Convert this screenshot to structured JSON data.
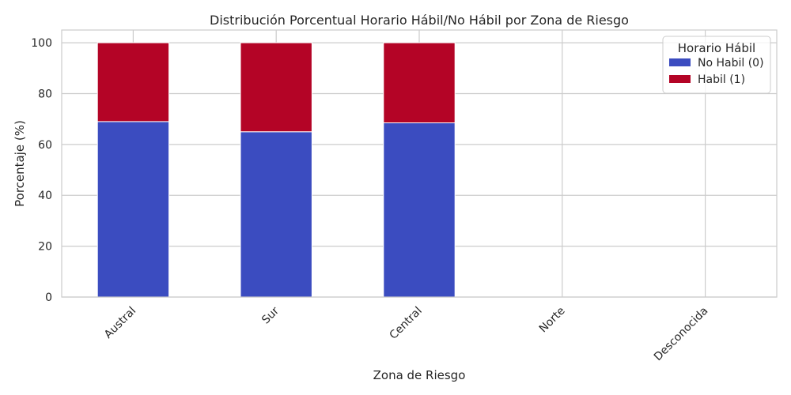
{
  "chart_data": {
    "type": "bar",
    "stacked": true,
    "title": "Distribución Porcentual Horario Hábil/No Hábil por Zona de Riesgo",
    "xlabel": "Zona de Riesgo",
    "ylabel": "Porcentaje (%)",
    "ylim": [
      0,
      105
    ],
    "yticks": [
      0,
      20,
      40,
      60,
      80,
      100
    ],
    "categories": [
      "Austral",
      "Sur",
      "Central",
      "Norte",
      "Desconocida"
    ],
    "series": [
      {
        "name": "No Habil (0)",
        "color": "#3b4cc0",
        "values": [
          69,
          65,
          68.5,
          0,
          0
        ]
      },
      {
        "name": "Habil (1)",
        "color": "#b40426",
        "values": [
          31,
          35,
          31.5,
          0,
          0
        ]
      }
    ],
    "legend": {
      "title": "Horario Hábil",
      "position": "top-right"
    },
    "grid": true
  }
}
